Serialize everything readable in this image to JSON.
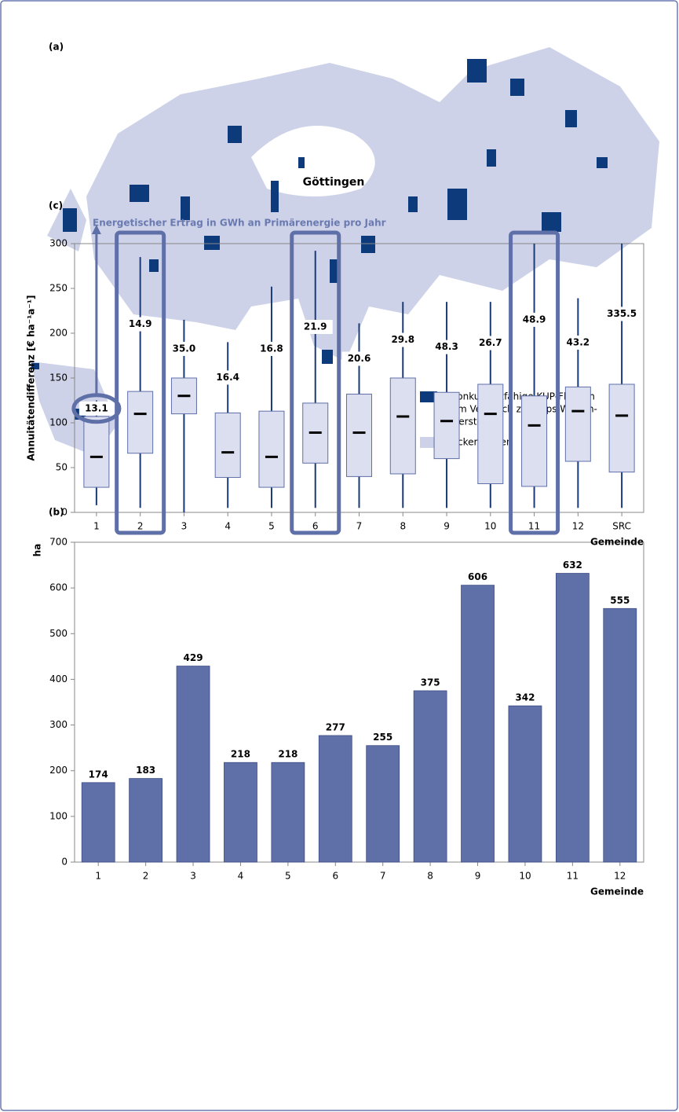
{
  "panel_a": {
    "label": "(a)",
    "city": "Göttingen",
    "legend": [
      {
        "lines": [
          "Konkurrenzfähige KUP-Flächen",
          "(im Vergleich zur Raps-Weizen-",
          "Gerste-FF)"
        ],
        "color": "#0d3a7a"
      },
      {
        "lines": [
          "Ackerflächen"
        ],
        "color": "#cdd2e8"
      }
    ]
  },
  "chart_data": [
    {
      "type": "bar",
      "label": "(b)",
      "y_label": "ha",
      "x_label": "Gemeinde",
      "categories": [
        "1",
        "2",
        "3",
        "4",
        "5",
        "6",
        "7",
        "8",
        "9",
        "10",
        "11",
        "12"
      ],
      "values": [
        174,
        183,
        429,
        218,
        218,
        277,
        255,
        375,
        606,
        342,
        632,
        555
      ],
      "color": "#5f6fa8",
      "ylim": [
        0,
        700
      ],
      "yticks": [
        0,
        100,
        200,
        300,
        400,
        500,
        600,
        700
      ]
    },
    {
      "type": "box",
      "label": "(c)",
      "y_label": "Annuitätendifferenz [€ ha⁻¹a⁻¹]",
      "x_label": "Gemeinde",
      "categories": [
        "1",
        "2",
        "3",
        "4",
        "5",
        "6",
        "7",
        "8",
        "9",
        "10",
        "11",
        "12",
        "SRC"
      ],
      "low": [
        8,
        5,
        0,
        5,
        5,
        5,
        5,
        5,
        5,
        5,
        5,
        5,
        5
      ],
      "q1": [
        28,
        66,
        110,
        39,
        28,
        55,
        40,
        43,
        60,
        32,
        29,
        57,
        45
      ],
      "median": [
        62,
        110,
        130,
        67,
        62,
        89,
        89,
        107,
        102,
        110,
        97,
        113,
        108
      ],
      "q3": [
        107,
        135,
        150,
        111,
        113,
        122,
        132,
        150,
        134,
        143,
        130,
        140,
        143
      ],
      "high": [
        125,
        285,
        215,
        190,
        252,
        292,
        211,
        235,
        235,
        235,
        300,
        239,
        300
      ],
      "color": "#dcdff0",
      "ylim": [
        0,
        300
      ],
      "yticks": [
        0,
        50,
        100,
        150,
        200,
        250,
        300
      ],
      "highlight": [
        "2",
        "6",
        "11"
      ],
      "circled": [
        "1"
      ],
      "energy": {
        "title": "Energetischer Ertrag in GWh an Primärenergie pro Jahr",
        "values": [
          13.1,
          14.9,
          35.0,
          16.4,
          16.8,
          21.9,
          20.6,
          29.8,
          48.3,
          26.7,
          48.9,
          43.2,
          335.5
        ],
        "value_labels": [
          "13.1",
          "14.9",
          "35.0",
          "16.4",
          "16.8",
          "21.9",
          "20.6",
          "29.8",
          "48.3",
          "26.7",
          "48.9",
          "43.2",
          "335.5"
        ]
      }
    }
  ]
}
